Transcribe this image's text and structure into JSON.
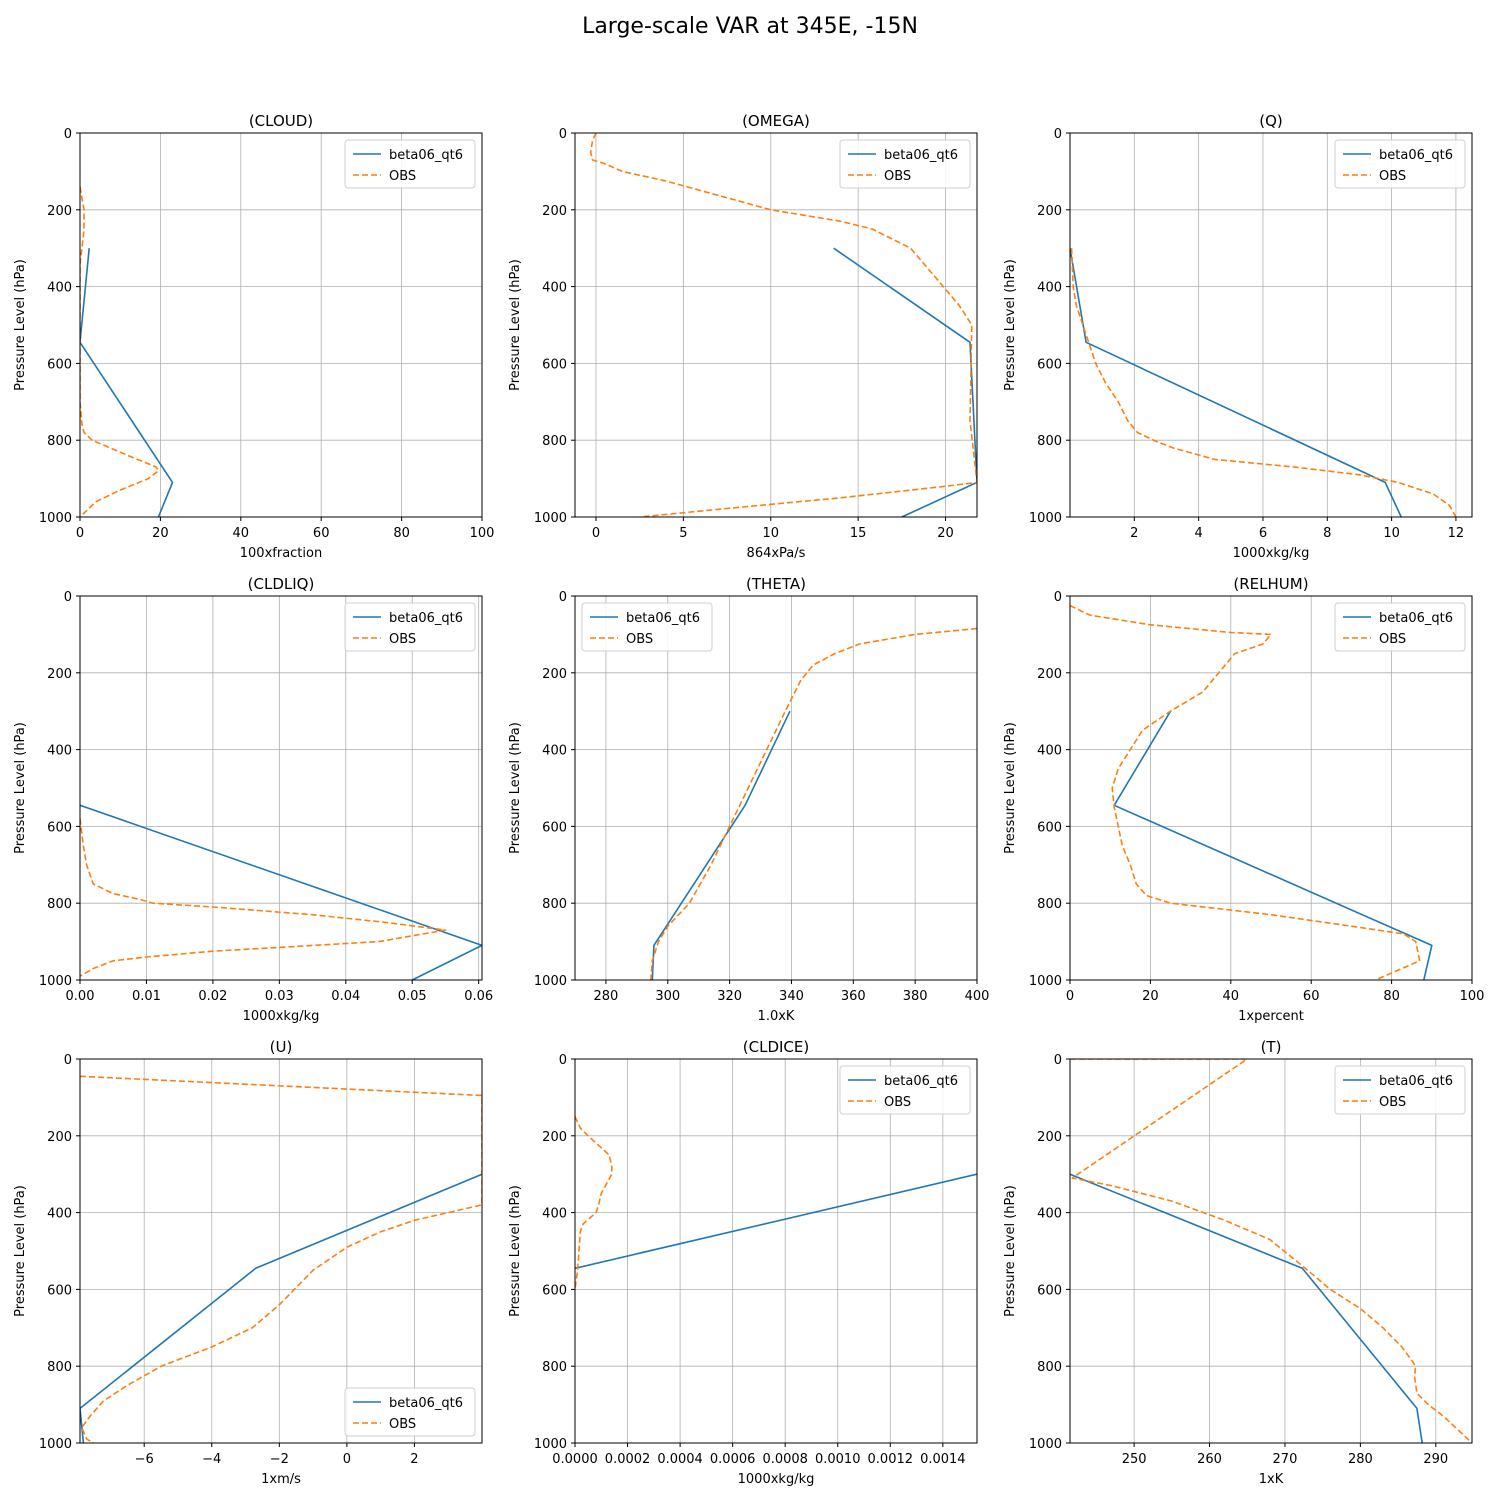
{
  "figure": {
    "title": "Large-scale VAR at 345E, -15N"
  },
  "colors": {
    "model": "#1f77b4",
    "obs": "#ff7f0e",
    "grid": "#b0b0b0",
    "axis": "#000000"
  },
  "chart_data": [
    {
      "type": "line",
      "title": "(CLOUD)",
      "xlabel": "100xfraction",
      "ylabel": "Pressure Level (hPa)",
      "xlim": [
        0,
        100
      ],
      "ylim": [
        1000,
        0
      ],
      "xticks": [
        0,
        20,
        40,
        60,
        80,
        100
      ],
      "xtick_labels": [
        "0",
        "20",
        "40",
        "60",
        "80",
        "100"
      ],
      "yticks": [
        0,
        200,
        400,
        600,
        800,
        1000
      ],
      "ytick_labels": [
        "0",
        "200",
        "400",
        "600",
        "800",
        "1000"
      ],
      "legend": "upper right",
      "series": [
        {
          "name": "beta06_qt6",
          "style": "solid",
          "x": [
            2.3,
            0,
            23,
            19.5
          ],
          "y": [
            300,
            545,
            910,
            1000
          ]
        },
        {
          "name": "OBS",
          "style": "dashed",
          "x": [
            0,
            0.5,
            1,
            1,
            0.5,
            0,
            0,
            0,
            0.5,
            1,
            3,
            12,
            19,
            19.5,
            17,
            10,
            4,
            1,
            0
          ],
          "y": [
            140,
            170,
            200,
            250,
            300,
            340,
            600,
            700,
            760,
            780,
            800,
            840,
            870,
            880,
            900,
            930,
            960,
            990,
            1000
          ]
        }
      ]
    },
    {
      "type": "line",
      "title": "(OMEGA)",
      "xlabel": "864xPa/s",
      "ylabel": "Pressure Level (hPa)",
      "xlim": [
        -1.2,
        21.8
      ],
      "ylim": [
        1000,
        0
      ],
      "xticks": [
        0,
        5,
        10,
        15,
        20
      ],
      "xtick_labels": [
        "0",
        "5",
        "10",
        "15",
        "20"
      ],
      "yticks": [
        0,
        200,
        400,
        600,
        800,
        1000
      ],
      "ytick_labels": [
        "0",
        "200",
        "400",
        "600",
        "800",
        "1000"
      ],
      "legend": "upper right",
      "series": [
        {
          "name": "beta06_qt6",
          "style": "solid",
          "x": [
            13.6,
            21.4,
            21.8,
            17.5
          ],
          "y": [
            300,
            545,
            910,
            1000
          ]
        },
        {
          "name": "OBS",
          "style": "dashed",
          "x": [
            0,
            -0.2,
            -0.3,
            -0.2,
            0.5,
            1.5,
            4,
            6,
            8,
            10,
            14,
            15.8,
            18,
            19.5,
            20.8,
            21.5,
            21.4,
            21.8,
            20,
            14,
            7,
            2.5
          ],
          "y": [
            0,
            20,
            50,
            70,
            80,
            100,
            125,
            150,
            175,
            200,
            230,
            250,
            300,
            380,
            450,
            500,
            750,
            910,
            920,
            950,
            980,
            1000
          ]
        }
      ]
    },
    {
      "type": "line",
      "title": "(Q)",
      "xlabel": "1000xkg/kg",
      "ylabel": "Pressure Level (hPa)",
      "xlim": [
        0,
        12.5
      ],
      "ylim": [
        1000,
        0
      ],
      "xticks": [
        2,
        4,
        6,
        8,
        10,
        12
      ],
      "xtick_labels": [
        "2",
        "4",
        "6",
        "8",
        "10",
        "12"
      ],
      "yticks": [
        0,
        200,
        400,
        600,
        800,
        1000
      ],
      "ytick_labels": [
        "0",
        "200",
        "400",
        "600",
        "800",
        "1000"
      ],
      "legend": "upper right",
      "series": [
        {
          "name": "beta06_qt6",
          "style": "solid",
          "x": [
            0,
            0.5,
            9.8,
            10.3
          ],
          "y": [
            300,
            545,
            910,
            1000
          ]
        },
        {
          "name": "OBS",
          "style": "dashed",
          "x": [
            0.05,
            0.1,
            0.2,
            0.4,
            0.6,
            0.8,
            1.1,
            1.5,
            1.8,
            2.1,
            2.6,
            3.2,
            4.5,
            7,
            9,
            10.2,
            11.3,
            11.8,
            12
          ],
          "y": [
            300,
            400,
            450,
            500,
            550,
            600,
            650,
            700,
            750,
            780,
            800,
            820,
            850,
            870,
            890,
            910,
            940,
            970,
            1000
          ]
        }
      ]
    },
    {
      "type": "line",
      "title": "(CLDLIQ)",
      "xlabel": "1000xkg/kg",
      "ylabel": "Pressure Level (hPa)",
      "xlim": [
        0,
        0.0605
      ],
      "ylim": [
        1000,
        0
      ],
      "xticks": [
        0,
        0.01,
        0.02,
        0.03,
        0.04,
        0.05,
        0.06
      ],
      "xtick_labels": [
        "0.00",
        "0.01",
        "0.02",
        "0.03",
        "0.04",
        "0.05",
        "0.06"
      ],
      "yticks": [
        0,
        200,
        400,
        600,
        800,
        1000
      ],
      "ytick_labels": [
        "0",
        "200",
        "400",
        "600",
        "800",
        "1000"
      ],
      "legend": "upper right",
      "series": [
        {
          "name": "beta06_qt6",
          "style": "solid",
          "x": [
            0,
            0.0605,
            0.05
          ],
          "y": [
            545,
            910,
            1000
          ]
        },
        {
          "name": "OBS",
          "style": "dashed",
          "x": [
            0,
            0.0005,
            0.001,
            0.002,
            0.005,
            0.009,
            0.011,
            0.02,
            0.035,
            0.046,
            0.055,
            0.05,
            0.045,
            0.03,
            0.02,
            0.01,
            0.005,
            0.002,
            0
          ],
          "y": [
            580,
            650,
            700,
            750,
            775,
            790,
            800,
            810,
            830,
            850,
            870,
            885,
            900,
            915,
            925,
            940,
            950,
            970,
            990
          ]
        }
      ]
    },
    {
      "type": "line",
      "title": "(THETA)",
      "xlabel": "1.0xK",
      "ylabel": "Pressure Level (hPa)",
      "xlim": [
        270,
        400
      ],
      "ylim": [
        1000,
        0
      ],
      "xticks": [
        280,
        300,
        320,
        340,
        360,
        380,
        400
      ],
      "xtick_labels": [
        "280",
        "300",
        "320",
        "340",
        "360",
        "380",
        "400"
      ],
      "yticks": [
        0,
        200,
        400,
        600,
        800,
        1000
      ],
      "ytick_labels": [
        "0",
        "200",
        "400",
        "600",
        "800",
        "1000"
      ],
      "legend": "upper left",
      "series": [
        {
          "name": "beta06_qt6",
          "style": "solid",
          "x": [
            339.5,
            325,
            295.5,
            295
          ],
          "y": [
            300,
            545,
            910,
            1000
          ]
        },
        {
          "name": "OBS",
          "style": "dashed",
          "x": [
            400,
            380,
            362,
            354,
            347,
            343,
            338,
            332,
            326,
            320,
            314,
            307,
            300,
            297,
            295,
            294.5
          ],
          "y": [
            85,
            100,
            125,
            150,
            180,
            220,
            300,
            400,
            500,
            600,
            700,
            800,
            860,
            900,
            950,
            1000
          ]
        }
      ]
    },
    {
      "type": "line",
      "title": "(RELHUM)",
      "xlabel": "1xpercent",
      "ylabel": "Pressure Level (hPa)",
      "xlim": [
        0,
        100
      ],
      "ylim": [
        1000,
        0
      ],
      "xticks": [
        0,
        20,
        40,
        60,
        80,
        100
      ],
      "xtick_labels": [
        "0",
        "20",
        "40",
        "60",
        "80",
        "100"
      ],
      "yticks": [
        0,
        200,
        400,
        600,
        800,
        1000
      ],
      "ytick_labels": [
        "0",
        "200",
        "400",
        "600",
        "800",
        "1000"
      ],
      "legend": "upper right",
      "series": [
        {
          "name": "beta06_qt6",
          "style": "solid",
          "x": [
            25,
            11,
            90,
            88
          ],
          "y": [
            300,
            545,
            910,
            1000
          ]
        },
        {
          "name": "OBS",
          "style": "dashed",
          "x": [
            0,
            5,
            20,
            40,
            50,
            48,
            41,
            33,
            25,
            18,
            15,
            12,
            10.5,
            11,
            13,
            15,
            16.5,
            19,
            25,
            50,
            70,
            83,
            86,
            87,
            76
          ],
          "y": [
            25,
            50,
            75,
            95,
            100,
            125,
            150,
            250,
            300,
            350,
            400,
            450,
            500,
            550,
            650,
            700,
            750,
            780,
            800,
            830,
            860,
            880,
            900,
            950,
            1000
          ]
        }
      ]
    },
    {
      "type": "line",
      "title": "(U)",
      "xlabel": "1xm/s",
      "ylabel": "Pressure Level (hPa)",
      "xlim": [
        -7.9,
        4.0
      ],
      "ylim": [
        1000,
        0
      ],
      "xticks": [
        -6,
        -4,
        -2,
        0,
        2
      ],
      "xtick_labels": [
        "−6",
        "−4",
        "−2",
        "0",
        "2"
      ],
      "yticks": [
        0,
        200,
        400,
        600,
        800,
        1000
      ],
      "ytick_labels": [
        "0",
        "200",
        "400",
        "600",
        "800",
        "1000"
      ],
      "legend": "lower right",
      "series": [
        {
          "name": "beta06_qt6",
          "style": "solid",
          "x": [
            4.0,
            -2.7,
            -7.9,
            -7.8
          ],
          "y": [
            300,
            545,
            910,
            1000
          ]
        },
        {
          "name": "OBS",
          "style": "dashed",
          "x": [
            -7.9,
            4.0,
            4.0,
            3,
            2,
            1,
            0,
            -1,
            -2,
            -2.8,
            -4,
            -5.5,
            -6.5,
            -7.2,
            -7.6,
            -7.85,
            -7.7,
            -7.5
          ],
          "y": [
            45,
            95,
            380,
            400,
            420,
            450,
            490,
            550,
            640,
            700,
            750,
            800,
            850,
            890,
            930,
            960,
            990,
            1000
          ]
        }
      ]
    },
    {
      "type": "line",
      "title": "(CLDICE)",
      "xlabel": "1000xkg/kg",
      "ylabel": "Pressure Level (hPa)",
      "xlim": [
        0,
        0.00153
      ],
      "ylim": [
        1000,
        0
      ],
      "xticks": [
        0,
        0.0002,
        0.0004,
        0.0006,
        0.0008,
        0.001,
        0.0012,
        0.0014
      ],
      "xtick_labels": [
        "0.0000",
        "0.0002",
        "0.0004",
        "0.0006",
        "0.0008",
        "0.0010",
        "0.0012",
        "0.0014"
      ],
      "yticks": [
        0,
        200,
        400,
        600,
        800,
        1000
      ],
      "ytick_labels": [
        "0",
        "200",
        "400",
        "600",
        "800",
        "1000"
      ],
      "legend": "upper right",
      "series": [
        {
          "name": "beta06_qt6",
          "style": "solid",
          "x": [
            0.00153,
            0
          ],
          "y": [
            300,
            545
          ]
        },
        {
          "name": "OBS",
          "style": "dashed",
          "x": [
            0,
            2e-05,
            5e-05,
            0.00013,
            0.00014,
            0.00014,
            0.0001,
            9e-05,
            8e-05,
            3e-05,
            2e-05,
            1e-05,
            0
          ],
          "y": [
            150,
            180,
            200,
            250,
            280,
            300,
            350,
            380,
            400,
            430,
            450,
            550,
            600
          ]
        }
      ]
    },
    {
      "type": "line",
      "title": "(T)",
      "xlabel": "1xK",
      "ylabel": "Pressure Level (hPa)",
      "xlim": [
        241.5,
        294.8
      ],
      "ylim": [
        1000,
        0
      ],
      "xticks": [
        250,
        260,
        270,
        280,
        290
      ],
      "xtick_labels": [
        "250",
        "260",
        "270",
        "280",
        "290"
      ],
      "yticks": [
        0,
        200,
        400,
        600,
        800,
        1000
      ],
      "ytick_labels": [
        "0",
        "200",
        "400",
        "600",
        "800",
        "1000"
      ],
      "legend": "upper right",
      "series": [
        {
          "name": "beta06_qt6",
          "style": "solid",
          "x": [
            241.5,
            272.3,
            287.5,
            288.2
          ],
          "y": [
            300,
            545,
            910,
            1000
          ]
        },
        {
          "name": "OBS",
          "style": "dashed",
          "x": [
            241.5,
            265,
            241.8,
            247,
            255,
            262,
            268,
            273,
            276,
            280,
            283,
            285.5,
            287,
            287.3,
            287.2,
            287.5,
            289,
            291,
            294.8
          ],
          "y": [
            0,
            0,
            310,
            330,
            370,
            420,
            470,
            550,
            600,
            650,
            700,
            750,
            790,
            800,
            830,
            870,
            900,
            930,
            1000
          ]
        }
      ]
    }
  ]
}
